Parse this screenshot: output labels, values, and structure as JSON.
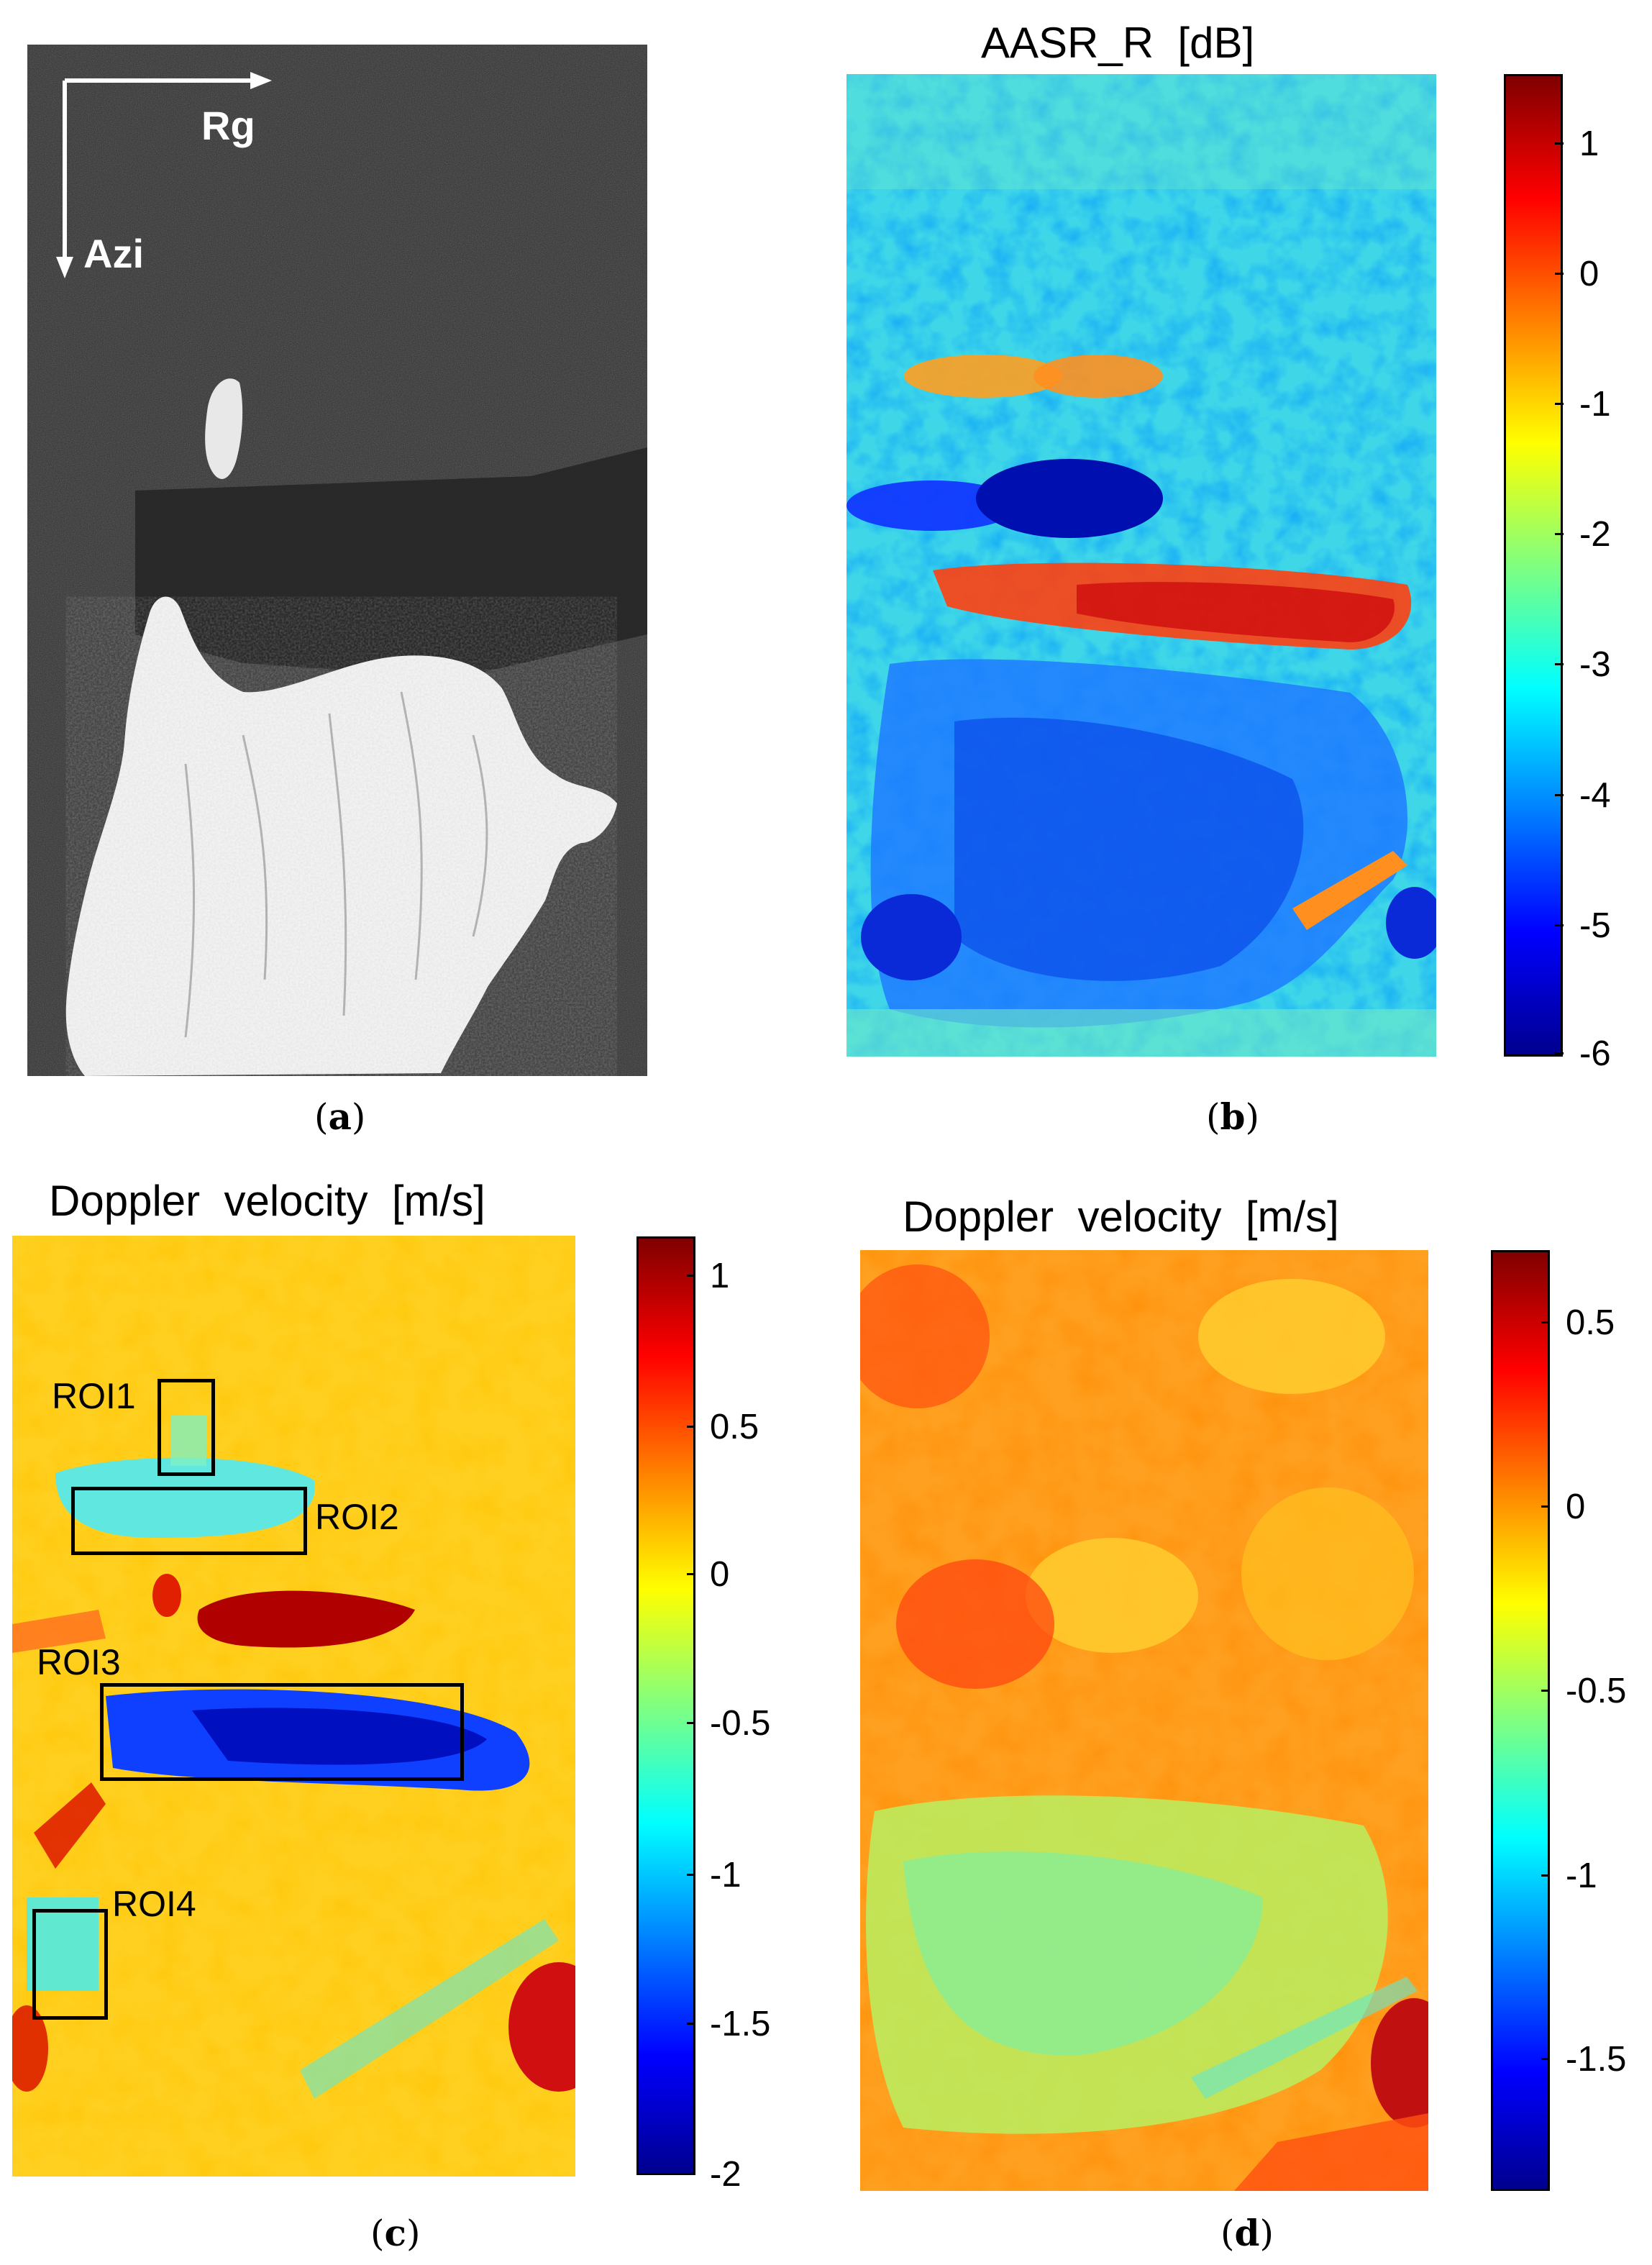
{
  "panels": {
    "a": {
      "caption_letter": "a",
      "arrow_range_label": "Rg",
      "arrow_azimuth_label": "Azi"
    },
    "b": {
      "caption_letter": "b",
      "title": "AASR_R  [dB]",
      "colorbar_ticks": [
        "1",
        "0",
        "-1",
        "-2",
        "-3",
        "-4",
        "-5",
        "-6"
      ]
    },
    "c": {
      "caption_letter": "c",
      "title": "Doppler  velocity  [m/s]",
      "colorbar_ticks": [
        "1",
        "0.5",
        "0",
        "-0.5",
        "-1",
        "-1.5",
        "-2"
      ],
      "rois": [
        "ROI1",
        "ROI2",
        "ROI3",
        "ROI4"
      ]
    },
    "d": {
      "caption_letter": "d",
      "title": "Doppler  velocity  [m/s]",
      "colorbar_ticks": [
        "0.5",
        "0",
        "-0.5",
        "-1",
        "-1.5"
      ]
    }
  },
  "colors": {
    "jet_dark_blue": "#00008f",
    "jet_dark_red": "#800000",
    "sar_background": "#2e2e2e"
  }
}
